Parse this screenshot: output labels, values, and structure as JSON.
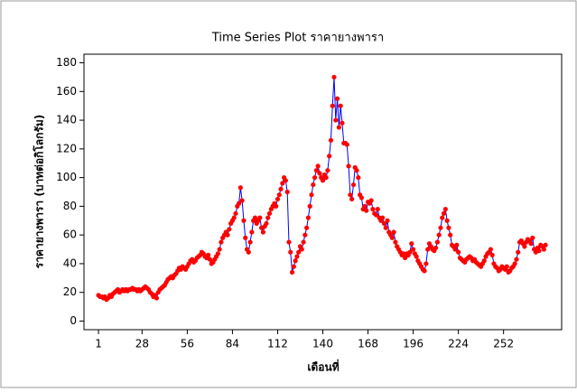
{
  "chart_data": {
    "type": "line",
    "title": "Time Series Plot ราคายางพารา",
    "x_label": "เดือนที่",
    "y_label": "ราคายางพารา (บาทต่อกิโลกรัม)",
    "x": [
      1,
      2,
      3,
      4,
      5,
      6,
      7,
      8,
      9,
      10,
      11,
      12,
      13,
      14,
      15,
      16,
      17,
      18,
      19,
      20,
      21,
      22,
      23,
      24,
      25,
      26,
      27,
      28,
      29,
      30,
      31,
      32,
      33,
      34,
      35,
      36,
      37,
      38,
      39,
      40,
      41,
      42,
      43,
      44,
      45,
      46,
      47,
      48,
      49,
      50,
      51,
      52,
      53,
      54,
      55,
      56,
      57,
      58,
      59,
      60,
      61,
      62,
      63,
      64,
      65,
      66,
      67,
      68,
      69,
      70,
      71,
      72,
      73,
      74,
      75,
      76,
      77,
      78,
      79,
      80,
      81,
      82,
      83,
      84,
      85,
      86,
      87,
      88,
      89,
      90,
      91,
      92,
      93,
      94,
      95,
      96,
      97,
      98,
      99,
      100,
      101,
      102,
      103,
      104,
      105,
      106,
      107,
      108,
      109,
      110,
      111,
      112,
      113,
      114,
      115,
      116,
      117,
      118,
      119,
      120,
      121,
      122,
      123,
      124,
      125,
      126,
      127,
      128,
      129,
      130,
      131,
      132,
      133,
      134,
      135,
      136,
      137,
      138,
      139,
      140,
      141,
      142,
      143,
      144,
      145,
      146,
      147,
      148,
      149,
      150,
      151,
      152,
      153,
      154,
      155,
      156,
      157,
      158,
      159,
      160,
      161,
      162,
      163,
      164,
      165,
      166,
      167,
      168,
      169,
      170,
      171,
      172,
      173,
      174,
      175,
      176,
      177,
      178,
      179,
      180,
      181,
      182,
      183,
      184,
      185,
      186,
      187,
      188,
      189,
      190,
      191,
      192,
      193,
      194,
      195,
      196,
      197,
      198,
      199,
      200,
      201,
      202,
      203,
      204,
      205,
      206,
      207,
      208,
      209,
      210,
      211,
      212,
      213,
      214,
      215,
      216,
      217,
      218,
      219,
      220,
      221,
      222,
      223,
      224,
      225,
      226,
      227,
      228,
      229,
      230,
      231,
      232,
      233,
      234,
      235,
      236,
      237,
      238,
      239,
      240,
      241,
      242,
      243,
      244,
      245,
      246,
      247,
      248,
      249,
      250,
      251,
      252,
      253,
      254,
      255,
      256,
      257,
      258,
      259,
      260,
      261,
      262,
      263,
      264,
      265,
      266,
      267,
      268,
      269,
      270,
      271,
      272,
      273,
      274,
      275,
      276,
      277,
      278
    ],
    "series": [
      {
        "name": "ราคายางพารา",
        "color": "#0000ff",
        "marker_color": "#ff0000",
        "values": [
          18,
          17,
          17,
          16,
          17,
          15,
          16,
          18,
          17,
          19,
          20,
          21,
          22,
          20,
          21,
          22,
          21,
          22,
          21,
          22,
          22,
          23,
          22,
          22,
          21,
          22,
          21,
          22,
          23,
          24,
          23,
          22,
          20,
          19,
          17,
          18,
          16,
          20,
          22,
          23,
          24,
          25,
          27,
          29,
          30,
          31,
          30,
          32,
          33,
          35,
          37,
          36,
          38,
          37,
          36,
          38,
          40,
          42,
          43,
          41,
          42,
          44,
          45,
          46,
          48,
          47,
          45,
          44,
          46,
          43,
          40,
          41,
          43,
          45,
          47,
          50,
          55,
          58,
          60,
          62,
          60,
          64,
          68,
          70,
          72,
          75,
          80,
          82,
          93,
          84,
          70,
          58,
          50,
          48,
          55,
          62,
          70,
          72,
          68,
          70,
          72,
          65,
          62,
          66,
          68,
          72,
          75,
          78,
          80,
          82,
          80,
          85,
          88,
          92,
          96,
          100,
          98,
          90,
          55,
          48,
          34,
          38,
          42,
          45,
          48,
          52,
          50,
          55,
          60,
          65,
          72,
          80,
          88,
          95,
          100,
          105,
          108,
          103,
          100,
          98,
          102,
          100,
          105,
          115,
          126,
          150,
          170,
          140,
          155,
          135,
          150,
          138,
          124,
          124,
          123,
          108,
          88,
          85,
          95,
          107,
          105,
          100,
          88,
          86,
          78,
          80,
          77,
          83,
          82,
          84,
          78,
          75,
          74,
          78,
          72,
          70,
          72,
          68,
          65,
          70,
          62,
          60,
          58,
          62,
          55,
          52,
          50,
          48,
          46,
          47,
          44,
          47,
          46,
          48,
          54,
          50,
          47,
          45,
          42,
          40,
          38,
          36,
          35,
          40,
          50,
          54,
          52,
          50,
          49,
          51,
          55,
          60,
          65,
          72,
          75,
          78,
          70,
          65,
          60,
          53,
          52,
          50,
          53,
          48,
          44,
          43,
          42,
          41,
          43,
          44,
          45,
          44,
          42,
          43,
          41,
          40,
          39,
          38,
          40,
          42,
          45,
          47,
          48,
          50,
          46,
          40,
          38,
          37,
          35,
          36,
          38,
          37,
          36,
          38,
          34,
          35,
          37,
          38,
          40,
          43,
          48,
          55,
          56,
          54,
          52,
          55,
          57,
          56,
          54,
          58,
          50,
          48,
          51,
          49,
          53,
          52,
          50,
          53
        ]
      }
    ],
    "xlim": [
      -8,
      288
    ],
    "xticks": [
      1,
      28,
      56,
      84,
      112,
      140,
      168,
      196,
      224,
      252
    ],
    "ylim": [
      -6,
      186
    ],
    "yticks": [
      0,
      20,
      40,
      60,
      80,
      100,
      120,
      140,
      160,
      180
    ]
  }
}
